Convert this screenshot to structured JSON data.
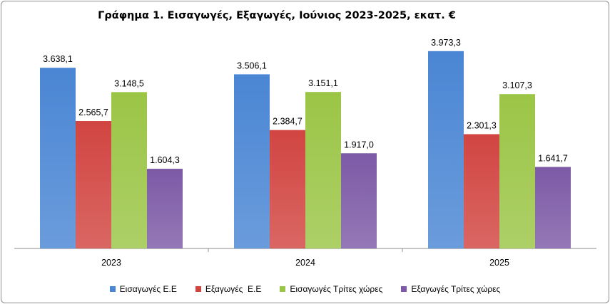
{
  "chart_data": {
    "type": "bar",
    "title": "Γράφημα 1. Εισαγωγές, Εξαγωγές, Ιούνιος 2023-2025, εκατ. €",
    "categories": [
      "2023",
      "2024",
      "2025"
    ],
    "series": [
      {
        "name": "Εισαγωγές Ε.Ε",
        "values": [
          3638.1,
          3506.1,
          3973.3
        ],
        "labels": [
          "3.638,1",
          "3.506,1",
          "3.973,3"
        ],
        "color": "#4a86d4"
      },
      {
        "name": "Εξαγωγές  Ε.Ε",
        "values": [
          2565.7,
          2384.7,
          2301.3
        ],
        "labels": [
          "2.565,7",
          "2.384,7",
          "2.301,3"
        ],
        "color": "#d14541"
      },
      {
        "name": "Εισαγωγές Τρίτες χώρες",
        "values": [
          3148.5,
          3151.1,
          3107.3
        ],
        "labels": [
          "3.148,5",
          "3.151,1",
          "3.107,3"
        ],
        "color": "#9bc546"
      },
      {
        "name": "Εξαγωγές Τρίτες χώρες",
        "values": [
          1604.3,
          1917.0,
          1641.7
        ],
        "labels": [
          "1.604,3",
          "1.917,0",
          "1.641,7"
        ],
        "color": "#7d5aa6"
      }
    ],
    "ylim": [
      0,
      4200
    ],
    "grid": false,
    "legend": "bottom"
  }
}
